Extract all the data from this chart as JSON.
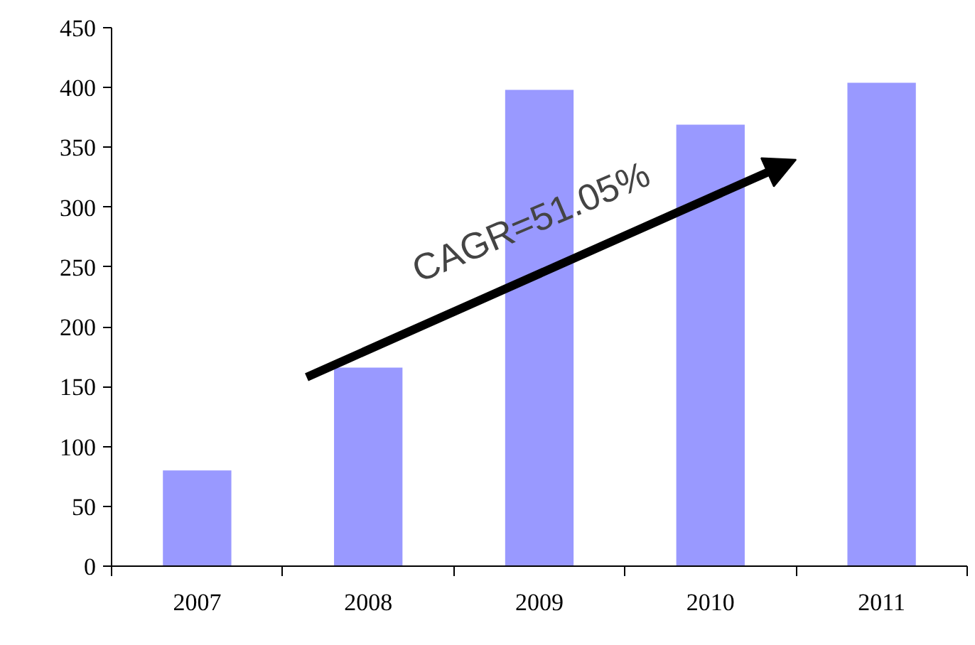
{
  "chart_data": {
    "type": "bar",
    "categories": [
      "2007",
      "2008",
      "2009",
      "2010",
      "2011"
    ],
    "values": [
      80,
      166,
      398,
      369,
      404
    ],
    "color": "#9999ff",
    "ylim": [
      0,
      450
    ],
    "yticks": [
      0,
      50,
      100,
      150,
      200,
      250,
      300,
      350,
      400,
      450
    ],
    "grid": false,
    "annotations": [
      "CAGR=51.05%"
    ]
  }
}
